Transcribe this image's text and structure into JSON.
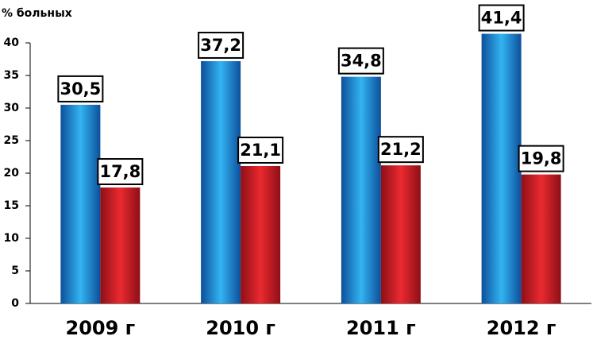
{
  "chart_data": {
    "type": "bar",
    "y_label": "% больных",
    "categories": [
      "2009 г",
      "2010 г",
      "2011 г",
      "2012 г"
    ],
    "series": [
      {
        "color": "#1a80d6",
        "values": [
          30.5,
          37.2,
          34.8,
          41.4
        ],
        "value_labels": [
          "30,5",
          "37,2",
          "34,8",
          "41,4"
        ]
      },
      {
        "color": "#d61e2a",
        "values": [
          17.8,
          21.1,
          21.2,
          19.8
        ],
        "value_labels": [
          "17,8",
          "21,1",
          "21,2",
          "19,8"
        ]
      }
    ],
    "ylim": [
      0,
      40
    ],
    "yticks": [
      0,
      5,
      10,
      15,
      20,
      25,
      30,
      35,
      40
    ],
    "grid": false
  }
}
